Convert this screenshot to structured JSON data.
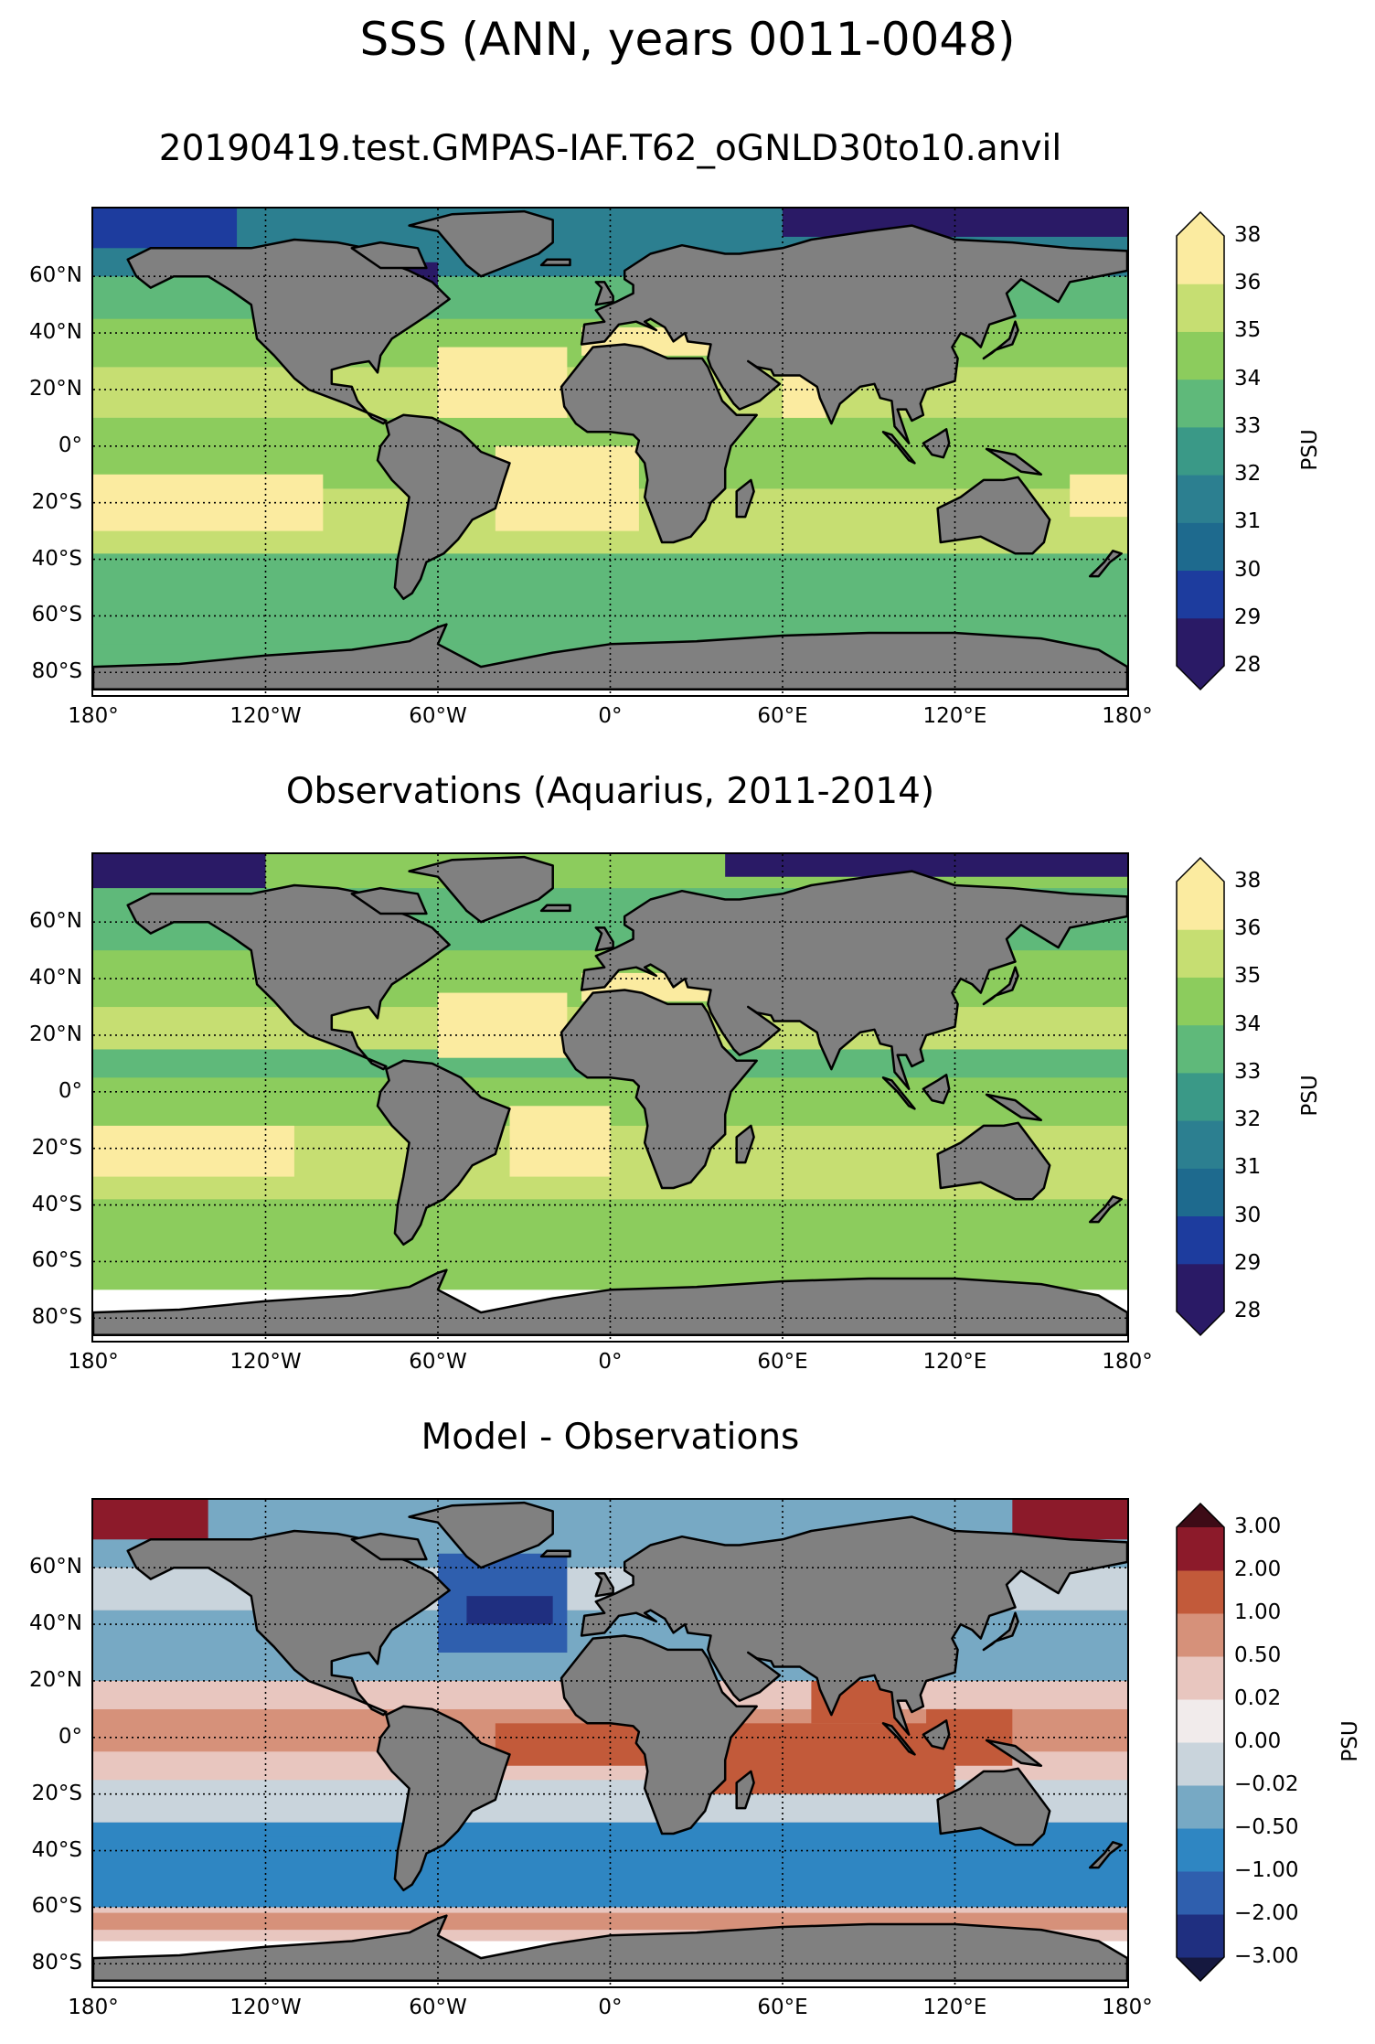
{
  "suptitle": "SSS (ANN, years 0011-0048)",
  "colors": {
    "land": "#808080",
    "missing": "#ffffff",
    "abs_cmap": [
      "#2a1a66",
      "#1d3c9e",
      "#1e6a8e",
      "#2c7f90",
      "#3a9987",
      "#5fb97a",
      "#8ccc5d",
      "#c6de72",
      "#fbeba0"
    ],
    "diff_cmap": [
      "#1f2f80",
      "#2f5fae",
      "#2f86c2",
      "#77a9c4",
      "#c9d4dc",
      "#f1ebeb",
      "#e8c6bf",
      "#d6917a",
      "#c25a3a",
      "#8c1a2a"
    ],
    "diff_under": "#15183f",
    "diff_over": "#3d0b16"
  },
  "panels": [
    {
      "title": "20190419.test.GMPAS-IAF.T62_oGNLD30to10.anvil",
      "cbar_levels": [
        "28",
        "29",
        "30",
        "31",
        "32",
        "33",
        "34",
        "35",
        "36",
        "38"
      ],
      "cbar_unit": "PSU",
      "kind": "abs"
    },
    {
      "title": "Observations (Aquarius, 2011-2014)",
      "cbar_levels": [
        "28",
        "29",
        "30",
        "31",
        "32",
        "33",
        "34",
        "35",
        "36",
        "38"
      ],
      "cbar_unit": "PSU",
      "kind": "obs"
    },
    {
      "title": "Model - Observations",
      "cbar_levels": [
        "−3.00",
        "−2.00",
        "−1.00",
        "−0.50",
        "−0.02",
        "0.00",
        "0.02",
        "0.50",
        "1.00",
        "2.00",
        "3.00"
      ],
      "cbar_unit": "PSU",
      "kind": "diff"
    }
  ],
  "lat_ticks": [
    "60°N",
    "40°N",
    "20°N",
    "0°",
    "20°S",
    "40°S",
    "60°S",
    "80°S"
  ],
  "lon_ticks": [
    "180°",
    "120°W",
    "60°W",
    "0°",
    "60°E",
    "120°E",
    "180°"
  ]
}
